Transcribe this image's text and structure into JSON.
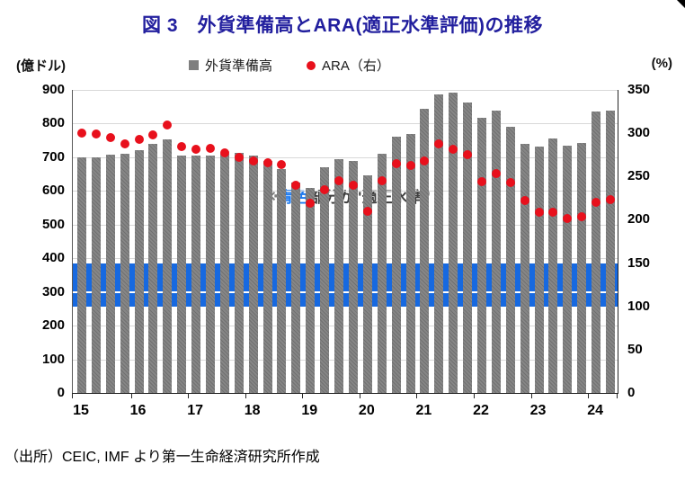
{
  "title": "図 3　外貨準備高とARA(適正水準評価)の推移",
  "axis_left_unit": "(億ドル)",
  "axis_right_unit": "(%)",
  "legend": {
    "bars_label": "外貨準備高",
    "dots_label": "ARA（右）"
  },
  "annotation": {
    "prefix": "※",
    "highlight": "青色",
    "rest": "部分が\"適正水準\""
  },
  "source": "（出所）CEIC, IMF より第一生命経済研究所作成",
  "colors": {
    "title": "#221f9e",
    "bar": "#7f7f7f",
    "dot": "#e8101c",
    "band": "#1769e0",
    "annotation_blue": "#1b79f0"
  },
  "chart_data": {
    "type": "bar",
    "title": "図 3　外貨準備高とARA(適正水準評価)の推移",
    "x": [
      "15Q1",
      "15Q2",
      "15Q3",
      "15Q4",
      "16Q1",
      "16Q2",
      "16Q3",
      "16Q4",
      "17Q1",
      "17Q2",
      "17Q3",
      "17Q4",
      "18Q1",
      "18Q2",
      "18Q3",
      "18Q4",
      "19Q1",
      "19Q2",
      "19Q3",
      "19Q4",
      "20Q1",
      "20Q2",
      "20Q3",
      "20Q4",
      "21Q1",
      "21Q2",
      "21Q3",
      "21Q4",
      "22Q1",
      "22Q2",
      "22Q3",
      "22Q4",
      "23Q1",
      "23Q2",
      "23Q3",
      "23Q4",
      "24Q1",
      "24Q2"
    ],
    "x_tick_labels": [
      "15",
      "16",
      "17",
      "18",
      "19",
      "20",
      "21",
      "22",
      "23",
      "24"
    ],
    "series": [
      {
        "name": "外貨準備高",
        "type": "bar",
        "axis": "left",
        "unit": "億ドル",
        "values": [
          700,
          700,
          708,
          710,
          720,
          740,
          752,
          705,
          705,
          706,
          710,
          712,
          706,
          690,
          665,
          625,
          610,
          670,
          695,
          690,
          645,
          710,
          760,
          770,
          845,
          886,
          893,
          862,
          818,
          838,
          790,
          740,
          733,
          755,
          735,
          742,
          835,
          838
        ]
      },
      {
        "name": "ARA（右）",
        "type": "scatter",
        "axis": "right",
        "unit": "%",
        "values": [
          300,
          299,
          295,
          288,
          293,
          298,
          310,
          285,
          281,
          283,
          277,
          272,
          268,
          266,
          264,
          240,
          219,
          235,
          245,
          240,
          210,
          245,
          265,
          263,
          268,
          288,
          281,
          275,
          244,
          253,
          243,
          222,
          209,
          209,
          202,
          204,
          220,
          223
        ]
      }
    ],
    "left_axis": {
      "min": 0,
      "max": 900,
      "step": 100,
      "label": "(億ドル)"
    },
    "right_axis": {
      "min": 0,
      "max": 350,
      "step": 50,
      "label": "(%)"
    },
    "band": {
      "axis": "right",
      "from": 100,
      "to": 150,
      "meaning": "適正水準",
      "color": "#1769e0"
    },
    "grid": true,
    "legend_position": "top"
  }
}
